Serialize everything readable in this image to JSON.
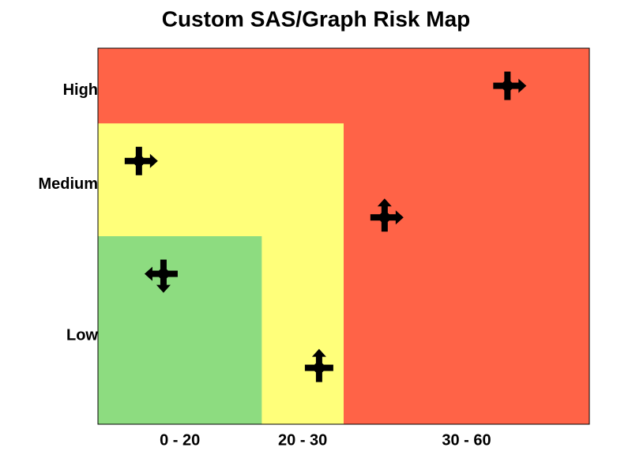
{
  "chart_data": {
    "type": "scatter",
    "title": "Custom SAS/Graph Risk Map",
    "xlim": [
      0,
      60
    ],
    "ylim": [
      0,
      100
    ],
    "xticks": [
      {
        "value": 10,
        "label": "0 - 20"
      },
      {
        "value": 25,
        "label": "20 - 30"
      },
      {
        "value": 45,
        "label": "30 - 60"
      }
    ],
    "yticks": [
      {
        "value": 23.5,
        "label": "Low"
      },
      {
        "value": 63.7,
        "label": "Medium"
      },
      {
        "value": 88.7,
        "label": "High"
      }
    ],
    "zones": [
      {
        "color": "#ff6347",
        "xlim": [
          0,
          60
        ],
        "ylim": [
          0,
          100
        ]
      },
      {
        "color": "#ffff7a",
        "xlim": [
          0,
          30
        ],
        "ylim": [
          0,
          80
        ]
      },
      {
        "color": "#8ddc80",
        "xlim": [
          0,
          20
        ],
        "ylim": [
          0,
          50
        ]
      }
    ],
    "x": [
      50,
      5,
      35,
      8,
      27
    ],
    "values": [
      90,
      70,
      55,
      40,
      15
    ],
    "arrows": [
      [
        "right"
      ],
      [
        "right"
      ],
      [
        "up",
        "right"
      ],
      [
        "left",
        "down"
      ],
      [
        "up"
      ]
    ],
    "color": "#000000"
  }
}
